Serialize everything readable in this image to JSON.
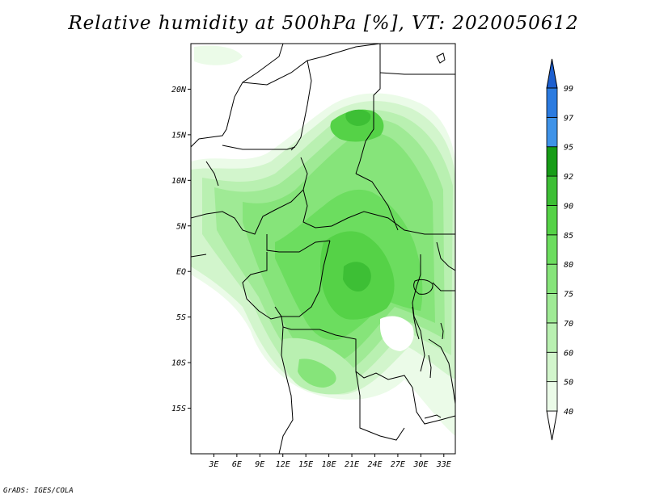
{
  "title": "Relative humidity at 500hPa [%], VT: 2020050612",
  "credit": "GrADS: IGES/COLA",
  "map": {
    "lat_labels": [
      "20N",
      "15N",
      "10N",
      "5N",
      "EQ",
      "5S",
      "10S",
      "15S"
    ],
    "lat_values": [
      20,
      15,
      10,
      5,
      0,
      -5,
      -10,
      -15
    ],
    "lon_labels": [
      "3E",
      "6E",
      "9E",
      "12E",
      "15E",
      "18E",
      "21E",
      "24E",
      "27E",
      "30E",
      "33E"
    ],
    "lon_values": [
      3,
      6,
      9,
      12,
      15,
      18,
      21,
      24,
      27,
      30,
      33
    ],
    "lon_range": [
      0,
      34.5
    ],
    "lat_range": [
      -20,
      25
    ]
  },
  "colorbar": {
    "labels": [
      "40",
      "50",
      "60",
      "70",
      "75",
      "80",
      "85",
      "90",
      "92",
      "95",
      "97",
      "99"
    ],
    "bins": [
      {
        "from": 40,
        "to": 50,
        "color": "#ebfbe8"
      },
      {
        "from": 50,
        "to": 60,
        "color": "#d2f5cc"
      },
      {
        "from": 60,
        "to": 70,
        "color": "#b9f0b1"
      },
      {
        "from": 70,
        "to": 75,
        "color": "#9fea95"
      },
      {
        "from": 75,
        "to": 80,
        "color": "#86e47a"
      },
      {
        "from": 80,
        "to": 85,
        "color": "#6cdd5f"
      },
      {
        "from": 85,
        "to": 90,
        "color": "#55d247"
      },
      {
        "from": 90,
        "to": 92,
        "color": "#3dbf35"
      },
      {
        "from": 92,
        "to": 95,
        "color": "#179c17"
      },
      {
        "from": 95,
        "to": 97,
        "color": "#3f93e8"
      },
      {
        "from": 97,
        "to": 99,
        "color": "#2b7be0"
      },
      {
        "from": 99,
        "to": 100,
        "color": "#1d5fcf"
      }
    ],
    "low_color": "#ffffff"
  }
}
